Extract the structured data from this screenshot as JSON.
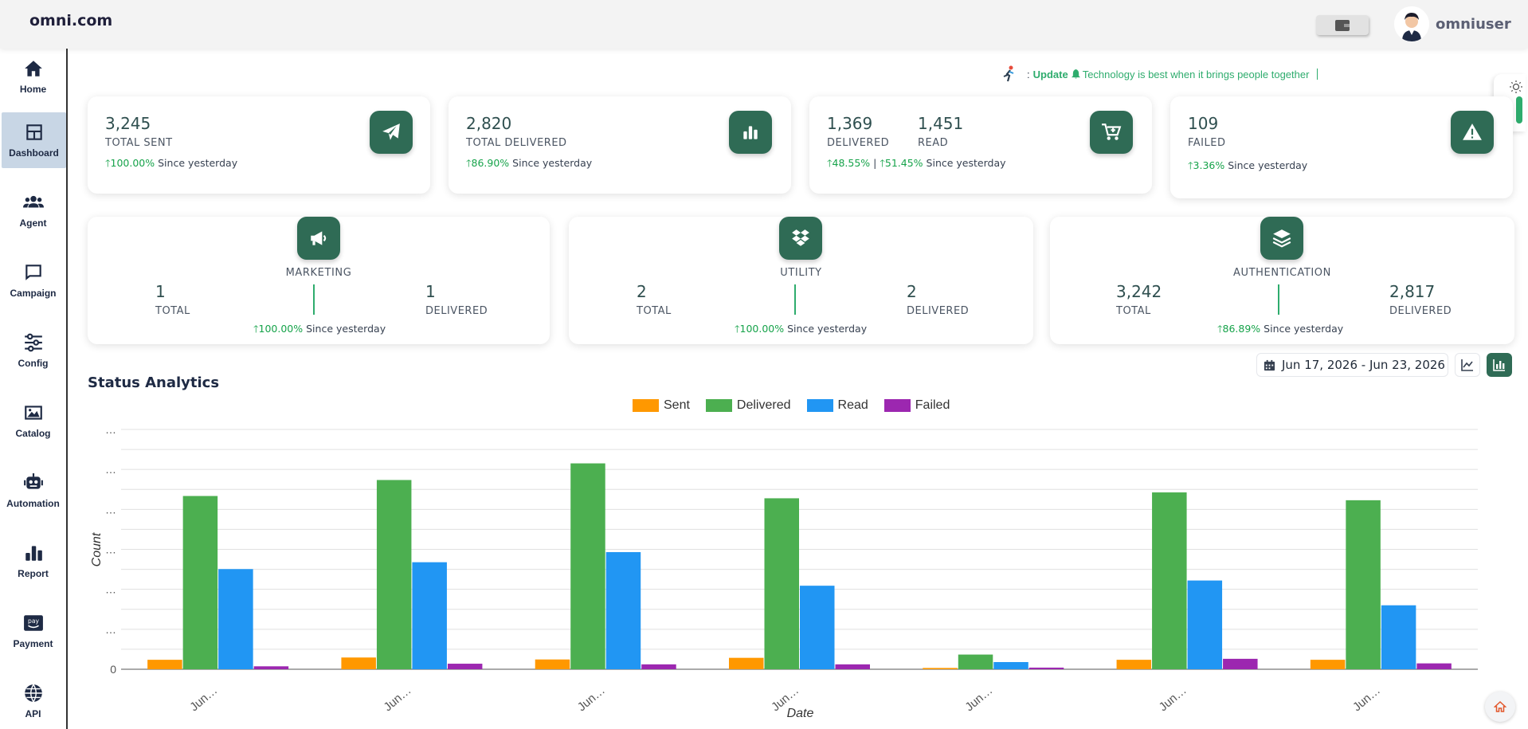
{
  "header": {
    "brand": "omni.com",
    "username": "omniuser",
    "wallet_icon": "wallet-icon"
  },
  "sidebar": {
    "items": [
      {
        "label": "Home",
        "icon": "home-icon"
      },
      {
        "label": "Dashboard",
        "icon": "dashboard-icon",
        "active": true
      },
      {
        "label": "Agent",
        "icon": "users-icon"
      },
      {
        "label": "Campaign",
        "icon": "chat-icon"
      },
      {
        "label": "Config",
        "icon": "sliders-icon"
      },
      {
        "label": "Catalog",
        "icon": "image-icon"
      },
      {
        "label": "Automation",
        "icon": "robot-icon"
      },
      {
        "label": "Report",
        "icon": "bar-chart-icon"
      },
      {
        "label": "Payment",
        "icon": "pay-icon"
      },
      {
        "label": "API",
        "icon": "globe-icon"
      }
    ]
  },
  "ticker": {
    "prefix": ":",
    "bold": "Update",
    "text": "Technology is best when it brings people together"
  },
  "kpis": {
    "sent": {
      "value": "3,245",
      "label": "TOTAL SENT",
      "change": "100.00%",
      "since": "Since yesterday"
    },
    "delivered": {
      "value": "2,820",
      "label": "TOTAL DELIVERED",
      "change": "86.90%",
      "since": "Since yesterday"
    },
    "read": {
      "delivered_value": "1,369",
      "delivered_label": "DELIVERED",
      "read_value": "1,451",
      "read_label": "READ",
      "change1": "48.55%",
      "sep": "|",
      "change2": "51.45%",
      "since": "Since yesterday"
    },
    "failed": {
      "value": "109",
      "label": "FAILED",
      "change": "3.36%",
      "since": "Since yesterday"
    }
  },
  "categories": {
    "marketing": {
      "title": "MARKETING",
      "total": "1",
      "total_label": "TOTAL",
      "delivered": "1",
      "delivered_label": "DELIVERED",
      "change": "100.00%",
      "since": "Since yesterday"
    },
    "utility": {
      "title": "UTILITY",
      "total": "2",
      "total_label": "TOTAL",
      "delivered": "2",
      "delivered_label": "DELIVERED",
      "change": "100.00%",
      "since": "Since yesterday"
    },
    "authentication": {
      "title": "AUTHENTICATION",
      "total": "3,242",
      "total_label": "TOTAL",
      "delivered": "2,817",
      "delivered_label": "DELIVERED",
      "change": "86.89%",
      "since": "Since yesterday"
    }
  },
  "analytics": {
    "title": "Status Analytics",
    "date_range": "Jun 17, 2026 - Jun 23, 2026"
  },
  "colors": {
    "accent": "#2f6b55",
    "up": "#16a34a",
    "sent": "#ff9800",
    "delivered": "#4caf50",
    "read": "#2196f3",
    "failed": "#9c27b0"
  },
  "chart_data": {
    "type": "bar",
    "categories": [
      "Jun…",
      "Jun…",
      "Jun…",
      "Jun…",
      "Jun…",
      "Jun…",
      "Jun…"
    ],
    "series": [
      {
        "name": "Sent",
        "values": [
          29,
          36,
          30,
          35,
          4,
          29,
          29
        ]
      },
      {
        "name": "Delivered",
        "values": [
          531,
          580,
          631,
          524,
          45,
          542,
          518
        ]
      },
      {
        "name": "Read",
        "values": [
          307,
          328,
          359,
          256,
          22,
          272,
          196
        ]
      },
      {
        "name": "Failed",
        "values": [
          9,
          17,
          15,
          15,
          5,
          32,
          18
        ]
      }
    ],
    "xlabel": "Date",
    "ylabel": "Count",
    "y_tick_labels": [
      "0",
      "…",
      "…",
      "…",
      "…",
      "…",
      "…"
    ],
    "ylim": [
      0,
      735
    ],
    "grid": true,
    "legend": "top-center"
  }
}
